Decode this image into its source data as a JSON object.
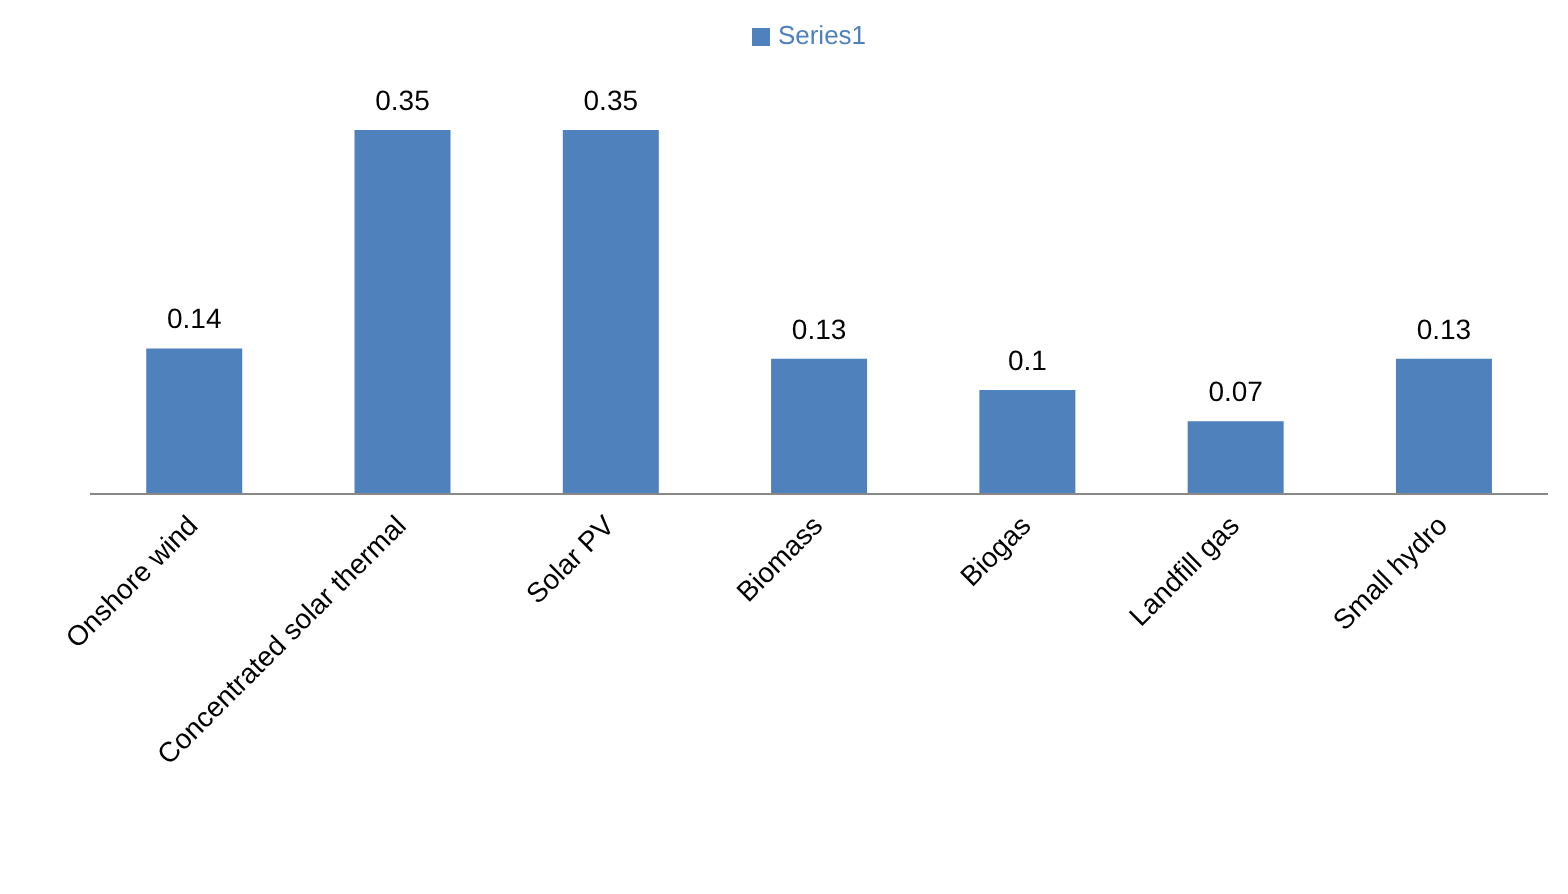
{
  "chart_data": {
    "type": "bar",
    "categories": [
      "Onshore wind",
      "Concentrated solar thermal",
      "Solar PV",
      "Biomass",
      "Biogas",
      "Landfill gas",
      "Small hydro"
    ],
    "series": [
      {
        "name": "Series1",
        "color": "#4f81bd",
        "values": [
          0.14,
          0.35,
          0.35,
          0.13,
          0.1,
          0.07,
          0.13
        ]
      }
    ],
    "data_labels": true,
    "legend": "top",
    "tick_labels": "x",
    "grid": false
  }
}
